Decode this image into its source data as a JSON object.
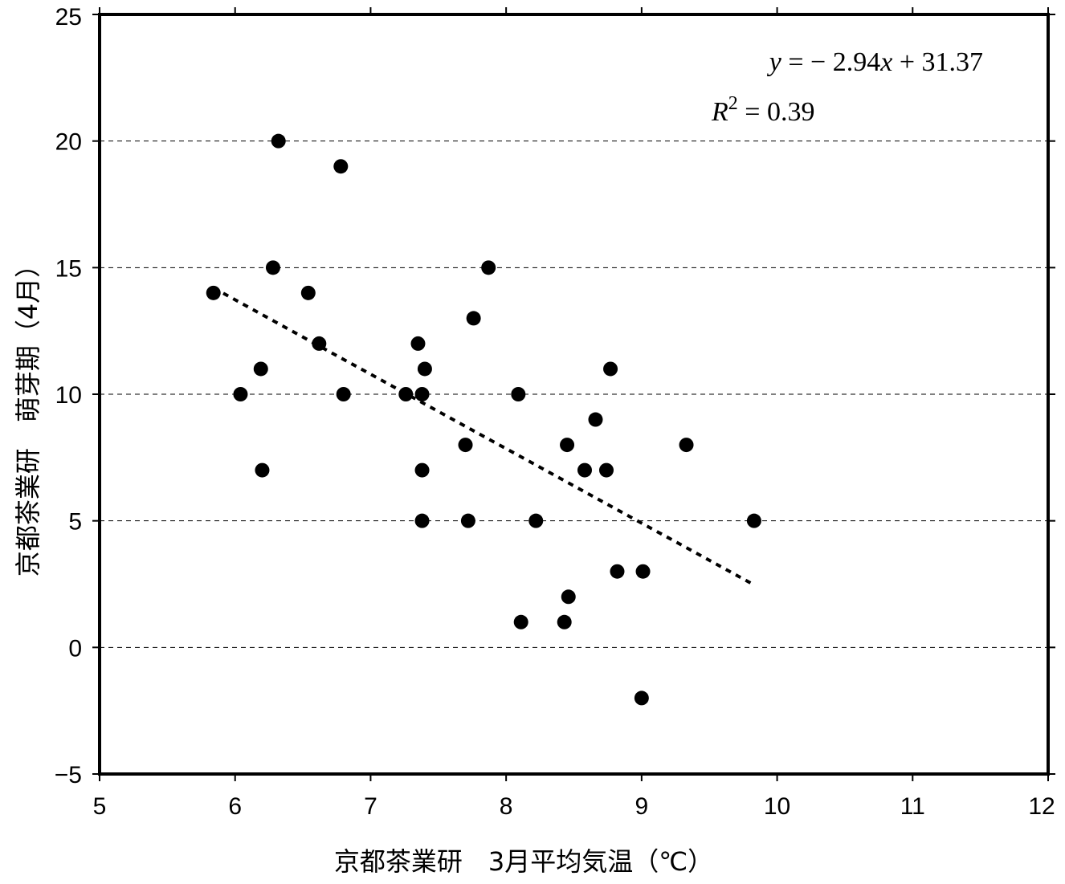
{
  "chart_data": {
    "type": "scatter",
    "title": "",
    "xlabel": "京都茶業研　3月平均気温（℃）",
    "ylabel": "京都茶業研　萌芽期（4月）",
    "xlim": [
      5,
      12
    ],
    "ylim": [
      -5,
      25
    ],
    "x_ticks": [
      5,
      6,
      7,
      8,
      9,
      10,
      11,
      12
    ],
    "y_ticks": [
      -5,
      0,
      5,
      10,
      15,
      20,
      25
    ],
    "x_tick_labels": [
      "5",
      "6",
      "7",
      "8",
      "9",
      "10",
      "11",
      "12"
    ],
    "y_tick_labels": [
      "−5",
      "0",
      "5",
      "10",
      "15",
      "20",
      "25"
    ],
    "grid": "horizontal dashed",
    "legend": "none",
    "points": [
      {
        "x": 5.84,
        "y": 14
      },
      {
        "x": 6.04,
        "y": 10
      },
      {
        "x": 6.19,
        "y": 11
      },
      {
        "x": 6.2,
        "y": 7
      },
      {
        "x": 6.28,
        "y": 15
      },
      {
        "x": 6.32,
        "y": 20
      },
      {
        "x": 6.54,
        "y": 14
      },
      {
        "x": 6.62,
        "y": 12
      },
      {
        "x": 6.78,
        "y": 19
      },
      {
        "x": 6.8,
        "y": 10
      },
      {
        "x": 7.26,
        "y": 10
      },
      {
        "x": 7.35,
        "y": 12
      },
      {
        "x": 7.38,
        "y": 10
      },
      {
        "x": 7.38,
        "y": 7
      },
      {
        "x": 7.38,
        "y": 5
      },
      {
        "x": 7.4,
        "y": 11
      },
      {
        "x": 7.7,
        "y": 8
      },
      {
        "x": 7.72,
        "y": 5
      },
      {
        "x": 7.76,
        "y": 13
      },
      {
        "x": 7.87,
        "y": 15
      },
      {
        "x": 8.09,
        "y": 10
      },
      {
        "x": 8.11,
        "y": 1
      },
      {
        "x": 8.22,
        "y": 5
      },
      {
        "x": 8.43,
        "y": 1
      },
      {
        "x": 8.45,
        "y": 8
      },
      {
        "x": 8.46,
        "y": 2
      },
      {
        "x": 8.58,
        "y": 7
      },
      {
        "x": 8.66,
        "y": 9
      },
      {
        "x": 8.74,
        "y": 7
      },
      {
        "x": 8.77,
        "y": 11
      },
      {
        "x": 8.82,
        "y": 3
      },
      {
        "x": 9.01,
        "y": 3
      },
      {
        "x": 9.0,
        "y": -2
      },
      {
        "x": 9.33,
        "y": 8
      },
      {
        "x": 9.83,
        "y": 5
      }
    ],
    "regression": {
      "slope": -2.94,
      "intercept": 31.37,
      "x_start": 5.84,
      "x_end": 9.83,
      "style": "dotted"
    },
    "annotations": {
      "equation": {
        "y": "y",
        "eq": " = − 2.94",
        "x": "x",
        "rest": " + 31.37"
      },
      "r2": {
        "R": "R",
        "sup": "2",
        "rest": " = 0.39"
      }
    }
  },
  "colors": {
    "points": "#000000",
    "axes": "#000000",
    "grid": "#000000",
    "background": "#ffffff"
  }
}
